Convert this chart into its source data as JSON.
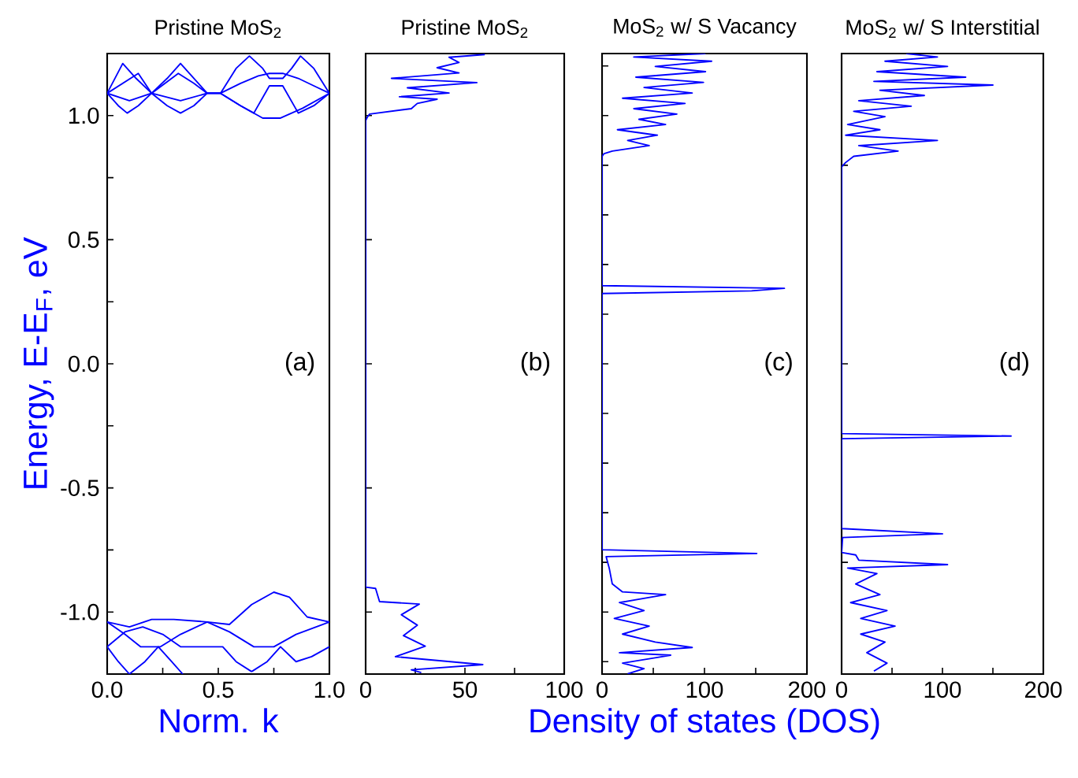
{
  "chart_data": [
    {
      "type": "line",
      "title": "Pristine MoS$_{2}$",
      "xlabel": "Norm. k",
      "ylabel": "Energy, E-E$_{F}$, eV",
      "annotations": [
        "(a)"
      ],
      "xlim": [
        0,
        1
      ],
      "ylim": [
        -1.25,
        1.25
      ],
      "xticks": [
        {
          "value": 0,
          "label": "0.0"
        },
        {
          "value": 0.25,
          "label": null
        },
        {
          "value": 0.5,
          "label": "0.5"
        },
        {
          "value": 0.75,
          "label": null
        },
        {
          "value": 1,
          "label": "1.0"
        }
      ],
      "yticks": [
        {
          "value": -1.25,
          "label": null
        },
        {
          "value": -1,
          "label": "-1.0"
        },
        {
          "value": -0.75,
          "label": null
        },
        {
          "value": -0.5,
          "label": "-0.5"
        },
        {
          "value": -0.25,
          "label": null
        },
        {
          "value": 0,
          "label": "0.0"
        },
        {
          "value": 0.25,
          "label": null
        },
        {
          "value": 0.5,
          "label": "0.5"
        },
        {
          "value": 0.75,
          "label": null
        },
        {
          "value": 1,
          "label": "1.0"
        }
      ],
      "series": [
        {
          "color": "#0000ff",
          "x": [
            0,
            0.05,
            0.09,
            0.14,
            0.2,
            0.27,
            0.33,
            0.39,
            0.45,
            0.51,
            0.6,
            0.7,
            0.78,
            0.88,
            1.0
          ],
          "values": [
            1.09,
            1.04,
            1.01,
            1.04,
            1.09,
            1.04,
            1.01,
            1.04,
            1.09,
            1.09,
            1.04,
            0.99,
            0.99,
            1.03,
            1.09
          ]
        },
        {
          "color": "#0000ff",
          "x": [
            0,
            0.07,
            0.13,
            0.2,
            0.27,
            0.33,
            0.39,
            0.45,
            0.51,
            0.58,
            0.64,
            0.7,
            0.73,
            0.79,
            0.83,
            0.87,
            0.93,
            1.0
          ],
          "values": [
            1.09,
            1.21,
            1.15,
            1.09,
            1.15,
            1.21,
            1.15,
            1.09,
            1.09,
            1.19,
            1.24,
            1.19,
            1.15,
            1.15,
            1.19,
            1.24,
            1.19,
            1.09
          ]
        },
        {
          "color": "#0000ff",
          "x": [
            0,
            0.07,
            0.14,
            0.2,
            0.26,
            0.32,
            0.39,
            0.45,
            0.51,
            0.6,
            0.66,
            0.73,
            0.79,
            0.86,
            0.93,
            1.0
          ],
          "values": [
            1.09,
            1.13,
            1.17,
            1.09,
            1.13,
            1.17,
            1.13,
            1.09,
            1.09,
            1.04,
            1.01,
            1.12,
            1.12,
            1.01,
            1.04,
            1.09
          ]
        },
        {
          "color": "#0000ff",
          "x": [
            0,
            0.1,
            0.2,
            0.33,
            0.45,
            0.51,
            0.6,
            0.68,
            0.73,
            0.79,
            0.86,
            0.93,
            1.0
          ],
          "values": [
            1.09,
            1.06,
            1.09,
            1.06,
            1.09,
            1.09,
            1.13,
            1.16,
            1.17,
            1.17,
            1.15,
            1.12,
            1.09
          ]
        },
        {
          "color": "#0000ff",
          "x": [
            0,
            0.1,
            0.2,
            0.3,
            0.45,
            0.55,
            0.65,
            0.75,
            0.82,
            0.9,
            1.0
          ],
          "values": [
            -1.04,
            -1.06,
            -1.03,
            -1.03,
            -1.04,
            -1.05,
            -0.97,
            -0.92,
            -0.94,
            -1.02,
            -1.04
          ]
        },
        {
          "color": "#0000ff",
          "x": [
            0,
            0.08,
            0.16,
            0.25,
            0.33,
            0.45,
            0.52,
            0.58,
            0.65,
            0.72,
            0.78,
            0.85,
            0.92,
            1.0
          ],
          "values": [
            -1.14,
            -1.08,
            -1.06,
            -1.09,
            -1.14,
            -1.14,
            -1.14,
            -1.2,
            -1.24,
            -1.2,
            -1.14,
            -1.2,
            -1.18,
            -1.14
          ]
        },
        {
          "color": "#0000ff",
          "x": [
            0,
            0.05,
            0.1,
            0.17,
            0.23,
            0.29,
            0.34
          ],
          "values": [
            -1.14,
            -1.2,
            -1.25,
            -1.2,
            -1.14,
            -1.2,
            -1.25
          ]
        },
        {
          "color": "#0000ff",
          "x": [
            0,
            0.08,
            0.15,
            0.24,
            0.33,
            0.45,
            0.55,
            0.66,
            0.75,
            0.85,
            1.0
          ],
          "values": [
            -1.04,
            -1.09,
            -1.14,
            -1.14,
            -1.09,
            -1.04,
            -1.08,
            -1.14,
            -1.14,
            -1.09,
            -1.04
          ]
        }
      ]
    },
    {
      "type": "line",
      "title": "Pristine MoS$_{2}$",
      "annotations": [
        "(b)"
      ],
      "tick_labels": "x",
      "xlim": [
        0,
        100
      ],
      "ylim": [
        -1.25,
        1.25
      ],
      "xticks": [
        0,
        {
          "value": 25,
          "label": null
        },
        50,
        {
          "value": 75,
          "label": null
        },
        100
      ],
      "yticks": [
        {
          "value": -1,
          "label": null
        },
        {
          "value": -0.5,
          "label": null
        },
        {
          "value": 0,
          "label": null
        },
        {
          "value": 0.5,
          "label": null
        },
        {
          "value": 1,
          "label": null
        }
      ],
      "series": [
        {
          "color": "#0000ff",
          "x": [
            60,
            42,
            47,
            36,
            47,
            13,
            56,
            21,
            42,
            17,
            36,
            26,
            23,
            2,
            1,
            0,
            0,
            5,
            7,
            27,
            18,
            26,
            19,
            30,
            15,
            59,
            23,
            28
          ],
          "values": [
            1.246,
            1.235,
            1.214,
            1.193,
            1.172,
            1.15,
            1.133,
            1.112,
            1.091,
            1.076,
            1.066,
            1.049,
            1.028,
            1.006,
            0.996,
            0.98,
            -0.9,
            -0.905,
            -0.958,
            -0.968,
            -1.011,
            -1.053,
            -1.095,
            -1.138,
            -1.18,
            -1.212,
            -1.233,
            -1.244
          ]
        }
      ]
    },
    {
      "type": "line",
      "title": "MoS$_{2}$ w/ S Vacancy",
      "xlabel": "Density of states (DOS)",
      "annotations": [
        "(c)"
      ],
      "tick_labels": "x",
      "xlim": [
        0,
        200
      ],
      "ylim": [
        -1.25,
        1.25
      ],
      "xticks": [
        0,
        {
          "value": 50,
          "label": null
        },
        100,
        {
          "value": 150,
          "label": null
        },
        200
      ],
      "yticks": [
        {
          "value": -1.2,
          "label": null
        },
        {
          "value": -1.0,
          "label": null
        },
        {
          "value": -0.8,
          "label": null
        },
        {
          "value": -0.6,
          "label": null
        },
        {
          "value": -0.4,
          "label": null
        },
        {
          "value": -0.2,
          "label": null
        },
        {
          "value": 0,
          "label": null
        },
        {
          "value": 0.2,
          "label": null
        },
        {
          "value": 0.4,
          "label": null
        },
        {
          "value": 0.6,
          "label": null
        },
        {
          "value": 0.8,
          "label": null
        },
        {
          "value": 1.0,
          "label": null
        },
        {
          "value": 1.2,
          "label": null
        }
      ],
      "series": [
        {
          "color": "#0000ff",
          "x": [
            101,
            31,
            107,
            52,
            101,
            33,
            99,
            41,
            88,
            20,
            81,
            31,
            73,
            36,
            62,
            15,
            54,
            25,
            46,
            10,
            2,
            0,
            0,
            178,
            146,
            0,
            0,
            151,
            4,
            7,
            10,
            20,
            62,
            17,
            41,
            12,
            46,
            20,
            52,
            88,
            17,
            67,
            20,
            41,
            25
          ],
          "values": [
            1.25,
            1.236,
            1.219,
            1.198,
            1.177,
            1.155,
            1.134,
            1.113,
            1.091,
            1.07,
            1.049,
            1.028,
            1.006,
            0.985,
            0.964,
            0.943,
            0.921,
            0.9,
            0.879,
            0.857,
            0.847,
            0.836,
            0.315,
            0.304,
            0.294,
            0.283,
            -0.749,
            -0.764,
            -0.777,
            -0.823,
            -0.887,
            -0.919,
            -0.93,
            -0.962,
            -0.994,
            -1.026,
            -1.057,
            -1.089,
            -1.121,
            -1.143,
            -1.164,
            -1.174,
            -1.206,
            -1.228,
            -1.249
          ]
        }
      ]
    },
    {
      "type": "line",
      "title": "MoS$_{2}$ w/ S Interstitial",
      "annotations": [
        "(d)"
      ],
      "tick_labels": "x",
      "xlim": [
        0,
        200
      ],
      "ylim": [
        -1.25,
        1.25
      ],
      "xticks": [
        0,
        {
          "value": 50,
          "label": null
        },
        100,
        {
          "value": 150,
          "label": null
        },
        200
      ],
      "yticks": [
        {
          "value": -0.8,
          "label": null
        },
        {
          "value": 0,
          "label": null
        },
        {
          "value": 0.8,
          "label": null
        }
      ],
      "series": [
        {
          "color": "#0000ff",
          "x": [
            64,
            95,
            43,
            105,
            35,
            123,
            32,
            150,
            38,
            82,
            17,
            69,
            12,
            43,
            6,
            38,
            4,
            95,
            17,
            56,
            12,
            4,
            0,
            0,
            168,
            0,
            0,
            100,
            1,
            0,
            14,
            17,
            105,
            6,
            35,
            14,
            38,
            9,
            45,
            19,
            53,
            19,
            43,
            25,
            45,
            32
          ],
          "values": [
            1.25,
            1.236,
            1.219,
            1.198,
            1.177,
            1.155,
            1.138,
            1.123,
            1.102,
            1.081,
            1.06,
            1.038,
            1.017,
            0.996,
            0.964,
            0.943,
            0.921,
            0.9,
            0.879,
            0.857,
            0.836,
            0.811,
            0.794,
            -0.281,
            -0.291,
            -0.302,
            -0.664,
            -0.685,
            -0.7,
            -0.76,
            -0.77,
            -0.791,
            -0.809,
            -0.823,
            -0.845,
            -0.887,
            -0.93,
            -0.962,
            -0.994,
            -1.026,
            -1.057,
            -1.089,
            -1.121,
            -1.164,
            -1.206,
            -1.238
          ]
        }
      ]
    }
  ]
}
